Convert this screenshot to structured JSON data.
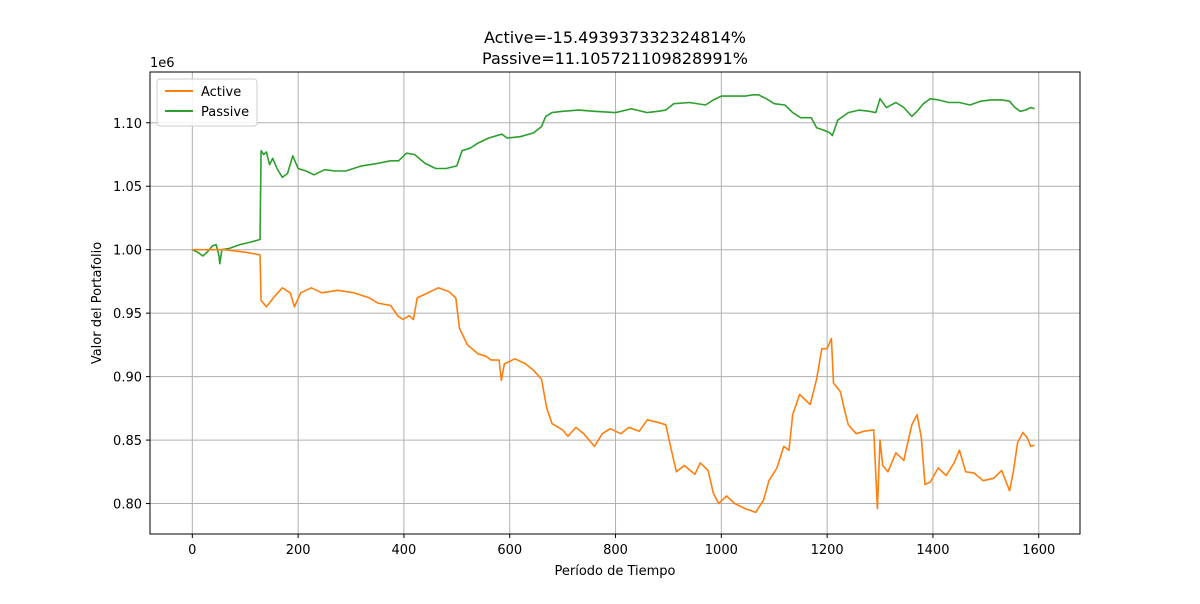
{
  "chart_data": {
    "type": "line",
    "title_lines": [
      "Active=-15.493937332324814%",
      "Passive=11.105721109828991%"
    ],
    "xlabel": "Período de Tiempo",
    "ylabel": "Valor del Portafolio",
    "y_offset_label": "1e6",
    "xlim": [
      -80,
      1678
    ],
    "ylim": [
      776000,
      1140000
    ],
    "x_ticks": [
      0,
      200,
      400,
      600,
      800,
      1000,
      1200,
      1400,
      1600
    ],
    "x_tick_labels": [
      "0",
      "200",
      "400",
      "600",
      "800",
      "1000",
      "1200",
      "1400",
      "1600"
    ],
    "y_ticks": [
      800000,
      850000,
      900000,
      950000,
      1000000,
      1050000,
      1100000
    ],
    "y_tick_labels": [
      "0.80",
      "0.85",
      "0.90",
      "0.95",
      "1.00",
      "1.05",
      "1.10"
    ],
    "grid": true,
    "legend_position": "upper-left",
    "series": [
      {
        "name": "Active",
        "color": "#ff7f0e",
        "points": [
          [
            0,
            1000000
          ],
          [
            60,
            1000000
          ],
          [
            100,
            998000
          ],
          [
            128,
            996000
          ],
          [
            130,
            960000
          ],
          [
            140,
            955000
          ],
          [
            155,
            963000
          ],
          [
            170,
            970000
          ],
          [
            185,
            966000
          ],
          [
            193,
            955000
          ],
          [
            205,
            966000
          ],
          [
            225,
            970000
          ],
          [
            245,
            966000
          ],
          [
            275,
            968000
          ],
          [
            305,
            966000
          ],
          [
            335,
            962000
          ],
          [
            350,
            958000
          ],
          [
            375,
            956000
          ],
          [
            388,
            948000
          ],
          [
            398,
            945000
          ],
          [
            410,
            948000
          ],
          [
            418,
            945000
          ],
          [
            425,
            962000
          ],
          [
            440,
            965000
          ],
          [
            465,
            970000
          ],
          [
            485,
            967000
          ],
          [
            498,
            962000
          ],
          [
            505,
            938000
          ],
          [
            520,
            925000
          ],
          [
            540,
            918000
          ],
          [
            555,
            916000
          ],
          [
            565,
            913000
          ],
          [
            580,
            913000
          ],
          [
            584,
            897000
          ],
          [
            590,
            910000
          ],
          [
            610,
            914000
          ],
          [
            630,
            910000
          ],
          [
            645,
            905000
          ],
          [
            660,
            898000
          ],
          [
            670,
            875000
          ],
          [
            680,
            863000
          ],
          [
            700,
            858000
          ],
          [
            710,
            853000
          ],
          [
            725,
            860000
          ],
          [
            740,
            855000
          ],
          [
            760,
            845000
          ],
          [
            775,
            855000
          ],
          [
            790,
            859000
          ],
          [
            810,
            855000
          ],
          [
            825,
            860000
          ],
          [
            845,
            857000
          ],
          [
            860,
            866000
          ],
          [
            880,
            864000
          ],
          [
            895,
            862000
          ],
          [
            905,
            843000
          ],
          [
            915,
            825000
          ],
          [
            930,
            830000
          ],
          [
            950,
            823000
          ],
          [
            960,
            832000
          ],
          [
            975,
            826000
          ],
          [
            985,
            808000
          ],
          [
            995,
            800000
          ],
          [
            1010,
            806000
          ],
          [
            1025,
            800000
          ],
          [
            1045,
            796000
          ],
          [
            1065,
            793000
          ],
          [
            1080,
            803000
          ],
          [
            1090,
            818000
          ],
          [
            1105,
            828000
          ],
          [
            1118,
            845000
          ],
          [
            1128,
            842000
          ],
          [
            1135,
            870000
          ],
          [
            1148,
            886000
          ],
          [
            1158,
            882000
          ],
          [
            1168,
            878000
          ],
          [
            1180,
            898000
          ],
          [
            1190,
            922000
          ],
          [
            1200,
            922000
          ],
          [
            1208,
            930000
          ],
          [
            1212,
            895000
          ],
          [
            1225,
            888000
          ],
          [
            1232,
            875000
          ],
          [
            1240,
            862000
          ],
          [
            1255,
            855000
          ],
          [
            1270,
            857000
          ],
          [
            1288,
            858000
          ],
          [
            1295,
            796000
          ],
          [
            1300,
            850000
          ],
          [
            1305,
            830000
          ],
          [
            1315,
            825000
          ],
          [
            1330,
            840000
          ],
          [
            1345,
            834000
          ],
          [
            1360,
            862000
          ],
          [
            1370,
            870000
          ],
          [
            1378,
            852000
          ],
          [
            1385,
            815000
          ],
          [
            1395,
            817000
          ],
          [
            1410,
            828000
          ],
          [
            1425,
            822000
          ],
          [
            1440,
            832000
          ],
          [
            1450,
            842000
          ],
          [
            1462,
            825000
          ],
          [
            1478,
            824000
          ],
          [
            1495,
            818000
          ],
          [
            1515,
            820000
          ],
          [
            1530,
            826000
          ],
          [
            1545,
            810000
          ],
          [
            1552,
            825000
          ],
          [
            1560,
            848000
          ],
          [
            1570,
            856000
          ],
          [
            1578,
            852000
          ],
          [
            1585,
            845000
          ],
          [
            1592,
            846000
          ]
        ]
      },
      {
        "name": "Passive",
        "color": "#2ca02c",
        "points": [
          [
            0,
            1000000
          ],
          [
            10,
            998000
          ],
          [
            20,
            995000
          ],
          [
            30,
            999000
          ],
          [
            38,
            1003000
          ],
          [
            45,
            1004000
          ],
          [
            50,
            996000
          ],
          [
            52,
            989000
          ],
          [
            56,
            1000000
          ],
          [
            70,
            1001000
          ],
          [
            90,
            1004000
          ],
          [
            110,
            1006000
          ],
          [
            128,
            1008000
          ],
          [
            130,
            1078000
          ],
          [
            135,
            1075000
          ],
          [
            140,
            1077000
          ],
          [
            146,
            1067000
          ],
          [
            152,
            1072000
          ],
          [
            160,
            1064000
          ],
          [
            170,
            1057000
          ],
          [
            180,
            1060000
          ],
          [
            190,
            1074000
          ],
          [
            200,
            1064000
          ],
          [
            215,
            1062000
          ],
          [
            230,
            1059000
          ],
          [
            250,
            1063000
          ],
          [
            270,
            1062000
          ],
          [
            290,
            1062000
          ],
          [
            320,
            1066000
          ],
          [
            350,
            1068000
          ],
          [
            375,
            1070000
          ],
          [
            390,
            1070000
          ],
          [
            405,
            1076000
          ],
          [
            420,
            1075000
          ],
          [
            440,
            1068000
          ],
          [
            460,
            1064000
          ],
          [
            480,
            1064000
          ],
          [
            500,
            1066000
          ],
          [
            510,
            1078000
          ],
          [
            525,
            1080000
          ],
          [
            540,
            1084000
          ],
          [
            560,
            1088000
          ],
          [
            585,
            1091000
          ],
          [
            595,
            1088000
          ],
          [
            620,
            1089000
          ],
          [
            645,
            1092000
          ],
          [
            660,
            1097000
          ],
          [
            668,
            1105000
          ],
          [
            680,
            1108000
          ],
          [
            700,
            1109000
          ],
          [
            730,
            1110000
          ],
          [
            760,
            1109000
          ],
          [
            800,
            1108000
          ],
          [
            830,
            1111000
          ],
          [
            860,
            1108000
          ],
          [
            880,
            1109000
          ],
          [
            895,
            1110000
          ],
          [
            910,
            1115000
          ],
          [
            940,
            1116000
          ],
          [
            970,
            1114000
          ],
          [
            985,
            1118000
          ],
          [
            1000,
            1121000
          ],
          [
            1020,
            1121000
          ],
          [
            1045,
            1121000
          ],
          [
            1060,
            1122000
          ],
          [
            1070,
            1122000
          ],
          [
            1085,
            1119000
          ],
          [
            1100,
            1115000
          ],
          [
            1120,
            1114000
          ],
          [
            1135,
            1108000
          ],
          [
            1150,
            1104000
          ],
          [
            1170,
            1104000
          ],
          [
            1180,
            1096000
          ],
          [
            1195,
            1094000
          ],
          [
            1205,
            1092000
          ],
          [
            1210,
            1090000
          ],
          [
            1220,
            1102000
          ],
          [
            1240,
            1108000
          ],
          [
            1260,
            1110000
          ],
          [
            1280,
            1109000
          ],
          [
            1292,
            1108000
          ],
          [
            1300,
            1119000
          ],
          [
            1312,
            1112000
          ],
          [
            1330,
            1116000
          ],
          [
            1345,
            1112000
          ],
          [
            1360,
            1105000
          ],
          [
            1370,
            1109000
          ],
          [
            1382,
            1115000
          ],
          [
            1395,
            1119000
          ],
          [
            1410,
            1118000
          ],
          [
            1430,
            1116000
          ],
          [
            1450,
            1116000
          ],
          [
            1470,
            1114000
          ],
          [
            1490,
            1117000
          ],
          [
            1510,
            1118000
          ],
          [
            1530,
            1118000
          ],
          [
            1545,
            1117000
          ],
          [
            1555,
            1112000
          ],
          [
            1565,
            1109000
          ],
          [
            1575,
            1110000
          ],
          [
            1585,
            1112000
          ],
          [
            1592,
            1111000
          ]
        ]
      }
    ]
  }
}
